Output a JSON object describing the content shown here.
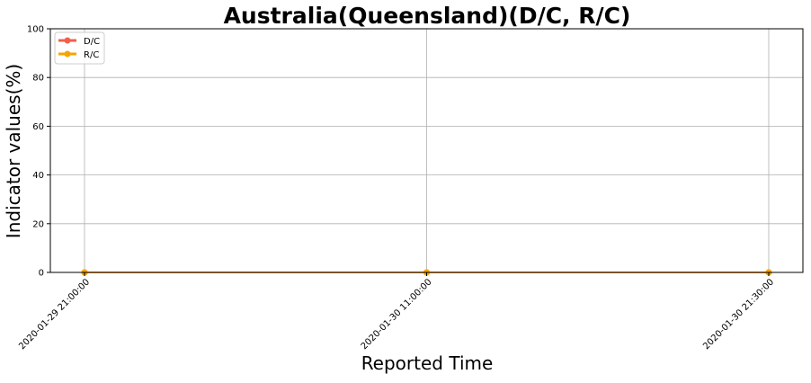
{
  "chart_data": {
    "type": "line",
    "title": "Australia(Queensland)(D/C, R/C)",
    "xlabel": "Reported Time",
    "ylabel": "Indicator values(%)",
    "categories": [
      "2020-01-29 21:00:00",
      "2020-01-30 11:00:00",
      "2020-01-30 21:30:00"
    ],
    "ylim": [
      0,
      100
    ],
    "yticks": [
      0,
      20,
      40,
      60,
      80,
      100
    ],
    "grid": true,
    "legend_position": "top-left",
    "series": [
      {
        "name": "D/C",
        "values": [
          0,
          0,
          0
        ],
        "color": "#f0604d"
      },
      {
        "name": "R/C",
        "values": [
          0,
          0,
          0
        ],
        "color": "#f5a500"
      }
    ]
  }
}
